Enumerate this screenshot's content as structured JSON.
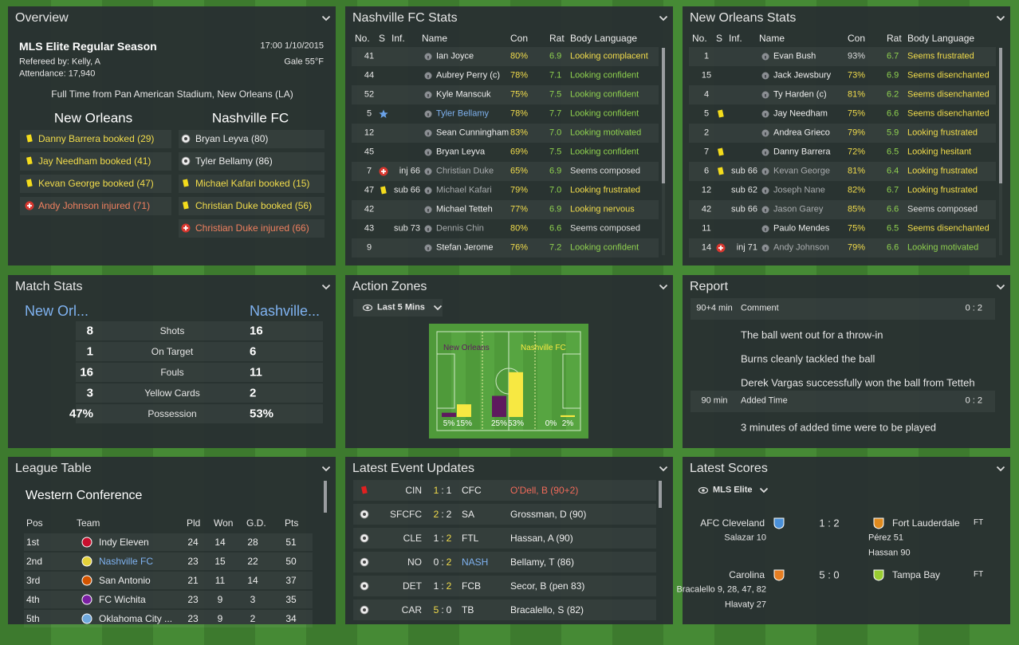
{
  "colors": {
    "good": "#8fd14f",
    "warn": "#f2dc4b",
    "plain": "#dddddd",
    "bad": "#f06a5a",
    "inj": "#f0805f",
    "link": "#7fb2f0",
    "dim": "#a9acae",
    "home": "#5e1a5e",
    "away": "#f7e842"
  },
  "overview": {
    "title": "Overview",
    "competition": "MLS Elite Regular Season",
    "datetime": "17:00 1/10/2015",
    "referee": "Refereed by: Kelly, A",
    "weather": "Gale 55°F",
    "attendance": "Attendance: 17,940",
    "result": "Full Time from Pan American Stadium, New Orleans (LA)",
    "home_team": "New Orleans",
    "away_team": "Nashville FC",
    "home_events": [
      {
        "icon": "yellow",
        "text": "Danny Barrera booked (29)"
      },
      {
        "icon": "yellow",
        "text": "Jay Needham booked (41)"
      },
      {
        "icon": "yellow",
        "text": "Kevan George booked (47)"
      },
      {
        "icon": "injury",
        "text": "Andy Johnson injured (71)"
      }
    ],
    "away_events": [
      {
        "icon": "goal",
        "text": "Bryan Leyva (80)"
      },
      {
        "icon": "goal",
        "text": "Tyler Bellamy (86)"
      },
      {
        "icon": "yellow",
        "text": "Michael Kafari booked (15)"
      },
      {
        "icon": "yellow",
        "text": "Christian Duke booked (56)"
      },
      {
        "icon": "injury",
        "text": "Christian Duke injured (66)"
      }
    ]
  },
  "nashville_stats": {
    "title": "Nashville FC Stats",
    "columns": [
      "No.",
      "S",
      "Inf.",
      "Name",
      "Con",
      "Rat",
      "Body Language"
    ],
    "rows": [
      {
        "no": "41",
        "name": "Ian Joyce",
        "con": "80%",
        "rat": "6.9",
        "body": "Looking complacent",
        "tone": "warn"
      },
      {
        "no": "44",
        "name": "Aubrey Perry (c)",
        "con": "78%",
        "rat": "7.1",
        "body": "Looking confident",
        "tone": "good"
      },
      {
        "no": "52",
        "name": "Kyle Manscuk",
        "con": "75%",
        "rat": "7.5",
        "body": "Looking confident",
        "tone": "good"
      },
      {
        "no": "5",
        "s": "star",
        "name": "Tyler Bellamy",
        "con": "78%",
        "rat": "7.7",
        "body": "Looking confident",
        "tone": "good",
        "name_tone": "link"
      },
      {
        "no": "12",
        "name": "Sean Cunningham",
        "con": "83%",
        "rat": "7.0",
        "body": "Looking motivated",
        "tone": "good"
      },
      {
        "no": "45",
        "name": "Bryan Leyva",
        "con": "69%",
        "rat": "7.5",
        "body": "Looking confident",
        "tone": "good"
      },
      {
        "no": "7",
        "s": "injury",
        "inf": "inj 66",
        "name": "Christian Duke",
        "con": "65%",
        "rat": "6.9",
        "body": "Seems composed",
        "tone": "plain",
        "name_tone": "dim"
      },
      {
        "no": "47",
        "s": "yellow",
        "inf": "sub 66",
        "name": "Michael Kafari",
        "con": "79%",
        "rat": "7.0",
        "body": "Looking frustrated",
        "tone": "warn",
        "name_tone": "dim"
      },
      {
        "no": "42",
        "name": "Michael Tetteh",
        "con": "77%",
        "rat": "6.9",
        "body": "Looking nervous",
        "tone": "warn"
      },
      {
        "no": "43",
        "inf": "sub 73",
        "name": "Dennis Chin",
        "con": "80%",
        "rat": "6.6",
        "body": "Seems composed",
        "tone": "plain",
        "name_tone": "dim"
      },
      {
        "no": "9",
        "name": "Stefan Jerome",
        "con": "76%",
        "rat": "7.2",
        "body": "Looking confident",
        "tone": "good"
      }
    ]
  },
  "new_orleans_stats": {
    "title": "New Orleans Stats",
    "columns": [
      "No.",
      "S",
      "Inf.",
      "Name",
      "Con",
      "Rat",
      "Body Language"
    ],
    "rows": [
      {
        "no": "1",
        "name": "Evan Bush",
        "con": "93%",
        "rat": "6.7",
        "body": "Seems frustrated",
        "tone": "warn",
        "con_tone": "plain"
      },
      {
        "no": "15",
        "name": "Jack Jewsbury",
        "con": "73%",
        "rat": "6.9",
        "body": "Seems disenchanted",
        "tone": "warn"
      },
      {
        "no": "4",
        "name": "Ty Harden (c)",
        "con": "81%",
        "rat": "6.2",
        "body": "Seems disenchanted",
        "tone": "warn"
      },
      {
        "no": "5",
        "s": "yellow",
        "name": "Jay Needham",
        "con": "75%",
        "rat": "6.6",
        "body": "Seems disenchanted",
        "tone": "warn"
      },
      {
        "no": "2",
        "name": "Andrea Grieco",
        "con": "79%",
        "rat": "5.9",
        "body": "Looking frustrated",
        "tone": "warn"
      },
      {
        "no": "7",
        "s": "yellow",
        "name": "Danny Barrera",
        "con": "72%",
        "rat": "6.5",
        "body": "Looking hesitant",
        "tone": "warn"
      },
      {
        "no": "6",
        "s": "yellow",
        "inf": "sub 66",
        "name": "Kevan George",
        "con": "81%",
        "rat": "6.4",
        "body": "Looking frustrated",
        "tone": "warn",
        "name_tone": "dim"
      },
      {
        "no": "12",
        "inf": "sub 62",
        "name": "Joseph Nane",
        "con": "82%",
        "rat": "6.7",
        "body": "Looking frustrated",
        "tone": "warn",
        "name_tone": "dim"
      },
      {
        "no": "42",
        "inf": "sub 66",
        "name": "Jason Garey",
        "con": "85%",
        "rat": "6.6",
        "body": "Seems composed",
        "tone": "plain",
        "name_tone": "dim"
      },
      {
        "no": "11",
        "name": "Paulo Mendes",
        "con": "75%",
        "rat": "6.5",
        "body": "Seems disenchanted",
        "tone": "warn"
      },
      {
        "no": "14",
        "s": "injury",
        "inf": "inj 71",
        "name": "Andy Johnson",
        "con": "79%",
        "rat": "6.6",
        "body": "Looking motivated",
        "tone": "good",
        "name_tone": "dim"
      }
    ]
  },
  "match_stats": {
    "title": "Match Stats",
    "home": "New Orl...",
    "away": "Nashville...",
    "rows": [
      {
        "label": "Shots",
        "home": "8",
        "away": "16"
      },
      {
        "label": "On Target",
        "home": "1",
        "away": "6"
      },
      {
        "label": "Fouls",
        "home": "16",
        "away": "11"
      },
      {
        "label": "Yellow Cards",
        "home": "3",
        "away": "2"
      },
      {
        "label": "Possession",
        "home": "47%",
        "away": "53%"
      }
    ]
  },
  "action_zones": {
    "title": "Action Zones",
    "filter": "Last 5 Mins",
    "home_label": "New Orleans",
    "away_label": "Nashville FC",
    "home_values": [
      5,
      25,
      0
    ],
    "home_value_labels": [
      "5%",
      "25%",
      "0%"
    ],
    "away_values": [
      15,
      53,
      2
    ],
    "away_value_labels": [
      "15%",
      "53%",
      "2%"
    ]
  },
  "report": {
    "title": "Report",
    "blocks": [
      {
        "time": "90+4 min",
        "heading": "Comment",
        "score": "0 : 2",
        "lines": [
          "The ball went out for a throw-in",
          "Burns cleanly tackled the ball",
          "Derek Vargas successfully won the ball from Tetteh"
        ]
      },
      {
        "time": "90 min",
        "heading": "Added Time",
        "score": "0 : 2",
        "lines": [
          "3 minutes of added time were to be played"
        ]
      }
    ]
  },
  "league_table": {
    "title": "League Table",
    "conference": "Western Conference",
    "columns": [
      "Pos",
      "Team",
      "Pld",
      "Won",
      "G.D.",
      "Pts"
    ],
    "rows": [
      {
        "pos": "1st",
        "team": "Indy Eleven",
        "pld": "24",
        "won": "14",
        "gd": "28",
        "pts": "51",
        "badge": "#c8102e"
      },
      {
        "pos": "2nd",
        "team": "Nashville FC",
        "pld": "23",
        "won": "15",
        "gd": "22",
        "pts": "50",
        "badge": "#e5d23a",
        "tone": "link"
      },
      {
        "pos": "3rd",
        "team": "San Antonio",
        "pld": "21",
        "won": "11",
        "gd": "14",
        "pts": "37",
        "badge": "#d35400"
      },
      {
        "pos": "4th",
        "team": "FC Wichita",
        "pld": "23",
        "won": "9",
        "gd": "3",
        "pts": "35",
        "badge": "#7a1fa2"
      },
      {
        "pos": "5th",
        "team": "Oklahoma City ...",
        "pld": "23",
        "won": "9",
        "gd": "2",
        "pts": "34",
        "badge": "#6fa8dc"
      }
    ]
  },
  "latest_events": {
    "title": "Latest Event Updates",
    "separator": ":",
    "rows": [
      {
        "icon": "red",
        "home": "CIN",
        "hs": "1",
        "as": "1",
        "away": "CFC",
        "desc": "O'Dell, B (90+2)",
        "lead": "home",
        "desc_tone": "bad"
      },
      {
        "icon": "goal",
        "home": "SFCFC",
        "hs": "2",
        "as": "2",
        "away": "SA",
        "desc": "Grossman, D (90)",
        "lead": "home"
      },
      {
        "icon": "goal",
        "home": "CLE",
        "hs": "1",
        "as": "2",
        "away": "FTL",
        "desc": "Hassan, A (90)",
        "lead": "away"
      },
      {
        "icon": "goal",
        "home": "NO",
        "hs": "0",
        "as": "2",
        "away": "NASH",
        "desc": "Bellamy, T (86)",
        "lead": "away",
        "away_tone": "link"
      },
      {
        "icon": "goal",
        "home": "DET",
        "hs": "1",
        "as": "2",
        "away": "FCB",
        "desc": "Secor, B (pen 83)",
        "lead": "away"
      },
      {
        "icon": "goal",
        "home": "CAR",
        "hs": "5",
        "as": "0",
        "away": "TB",
        "desc": "Bracalello, S (82)",
        "lead": "home"
      }
    ]
  },
  "latest_scores": {
    "title": "Latest Scores",
    "filter": "MLS Elite",
    "matches": [
      {
        "home": "AFC Cleveland",
        "score": "1 : 2",
        "away": "Fort Lauderdale",
        "status": "FT",
        "home_scorers": [
          "Salazar 10"
        ],
        "away_scorers": [
          "Pérez 51",
          "Hassan 90"
        ],
        "home_badge": "#4a90d9",
        "away_badge": "#e08a1e"
      },
      {
        "home": "Carolina",
        "score": "5 : 0",
        "away": "Tampa Bay",
        "status": "FT",
        "home_scorers": [
          "Bracalello 9, 28, 47, 82",
          "Hlavaty 27"
        ],
        "away_scorers": [],
        "home_badge": "#e67e22",
        "away_badge": "#9acd32"
      }
    ]
  }
}
